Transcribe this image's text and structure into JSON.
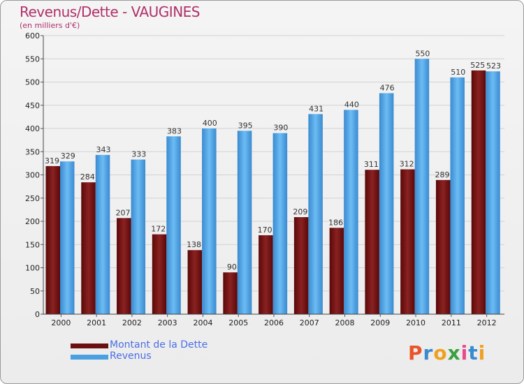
{
  "header": {
    "title": "Revenus/Dette - VAUGINES",
    "subtitle": "(en milliers d'€)"
  },
  "legend": {
    "items": [
      {
        "label": "Montant de la Dette",
        "color": "#6b1010"
      },
      {
        "label": "Revenus",
        "color": "#4aa0e0"
      }
    ]
  },
  "logo": {
    "text": "Proxiti"
  },
  "chart_data": {
    "type": "bar",
    "categories": [
      "2000",
      "2001",
      "2002",
      "2003",
      "2004",
      "2005",
      "2006",
      "2007",
      "2008",
      "2009",
      "2010",
      "2011",
      "2012"
    ],
    "series": [
      {
        "name": "Montant de la Dette",
        "color": "#6b1010",
        "values": [
          319,
          284,
          207,
          172,
          138,
          90,
          170,
          209,
          186,
          311,
          312,
          289,
          525
        ]
      },
      {
        "name": "Revenus",
        "color": "#4aa0e0",
        "values": [
          329,
          343,
          333,
          383,
          400,
          395,
          390,
          431,
          440,
          476,
          550,
          510,
          523
        ]
      }
    ],
    "ylim": [
      0,
      600
    ],
    "yticks": [
      0,
      50,
      100,
      150,
      200,
      250,
      300,
      350,
      400,
      450,
      500,
      550,
      600
    ],
    "grid": true,
    "title": "Revenus/Dette - VAUGINES",
    "ylabel": "(en milliers d'€)",
    "xlabel": ""
  }
}
